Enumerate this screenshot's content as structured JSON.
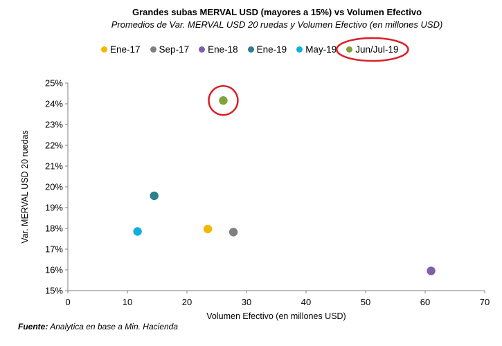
{
  "chart_data": {
    "type": "scatter",
    "title": "Grandes subas MERVAL USD (mayores a 15%) vs Volumen Efectivo",
    "subtitle": "Promedios de Var. MERVAL USD 20 ruedas y Volumen Efectivo (en millones USD)",
    "xlabel": "Volumen Efectivo (en millones USD)",
    "ylabel": "Var. MERVAL USD 20 ruedas",
    "xlim": [
      0,
      70
    ],
    "ylim": [
      0.15,
      0.25
    ],
    "x_ticks": [
      "0",
      "10",
      "20",
      "30",
      "40",
      "50",
      "60",
      "70"
    ],
    "y_ticks": [
      "15%",
      "16%",
      "17%",
      "18%",
      "19%",
      "20%",
      "21%",
      "22%",
      "23%",
      "24%",
      "25%"
    ],
    "legend_position": "top",
    "grid": false,
    "series": [
      {
        "name": "Ene-17",
        "color": "#f5b800",
        "x": 23.5,
        "y": 0.1797
      },
      {
        "name": "Sep-17",
        "color": "#7f7f7f",
        "x": 27.8,
        "y": 0.1782
      },
      {
        "name": "Ene-18",
        "color": "#7e5fa8",
        "x": 61.0,
        "y": 0.1595
      },
      {
        "name": "Ene-19",
        "color": "#2e7f8c",
        "x": 14.5,
        "y": 0.1957
      },
      {
        "name": "May-19",
        "color": "#12aee0",
        "x": 11.7,
        "y": 0.1785
      },
      {
        "name": "Jun/Jul-19",
        "color": "#7ea33b",
        "x": 26.1,
        "y": 0.2416
      }
    ],
    "highlight": [
      "Jun/Jul-19"
    ],
    "highlight_color": "#d91f26"
  },
  "source": {
    "label": "Fuente:",
    "text": " Analytica en base a Min. Hacienda"
  }
}
